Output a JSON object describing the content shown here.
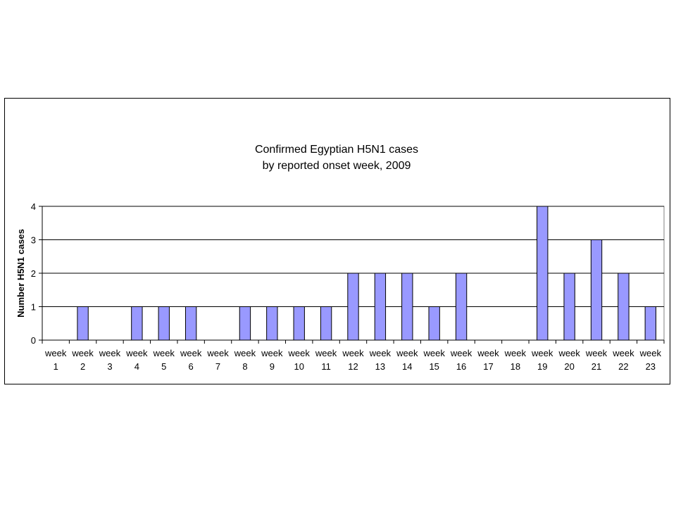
{
  "chart_data": {
    "type": "bar",
    "title_lines": [
      "Confirmed Egyptian H5N1 cases",
      "by reported onset week, 2009"
    ],
    "ylabel": "Number H5N1 cases",
    "xlabel": "",
    "ylim": [
      0,
      4
    ],
    "yticks": [
      0,
      1,
      2,
      3,
      4
    ],
    "grid": true,
    "categories": [
      [
        "week",
        "1"
      ],
      [
        "week",
        "2"
      ],
      [
        "week",
        "3"
      ],
      [
        "week",
        "4"
      ],
      [
        "week",
        "5"
      ],
      [
        "week",
        "6"
      ],
      [
        "week",
        "7"
      ],
      [
        "week",
        "8"
      ],
      [
        "week",
        "9"
      ],
      [
        "week",
        "10"
      ],
      [
        "week",
        "11"
      ],
      [
        "week",
        "12"
      ],
      [
        "week",
        "13"
      ],
      [
        "week",
        "14"
      ],
      [
        "week",
        "15"
      ],
      [
        "week",
        "16"
      ],
      [
        "week",
        "17"
      ],
      [
        "week",
        "18"
      ],
      [
        "week",
        "19"
      ],
      [
        "week",
        "20"
      ],
      [
        "week",
        "21"
      ],
      [
        "week",
        "22"
      ],
      [
        "week",
        "23"
      ]
    ],
    "values": [
      0,
      1,
      0,
      1,
      1,
      1,
      0,
      1,
      1,
      1,
      1,
      2,
      2,
      2,
      1,
      2,
      0,
      0,
      4,
      2,
      3,
      2,
      1
    ],
    "bar_color": "#9999ff",
    "bar_stroke": "#000000",
    "gridline_color": "#000000"
  }
}
